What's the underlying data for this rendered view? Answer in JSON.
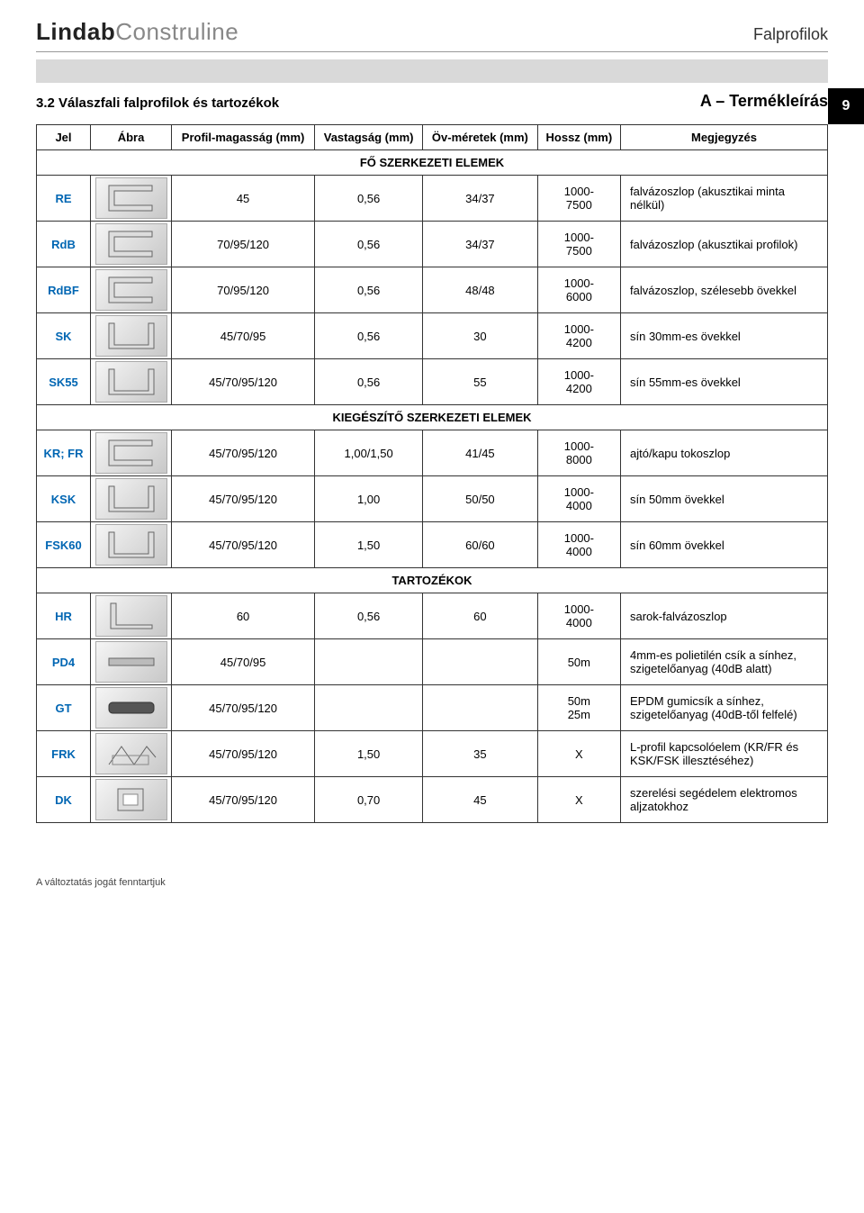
{
  "brand": {
    "bold": "Lindab",
    "light": "Construline"
  },
  "header_right": "Falprofilok",
  "section": {
    "number_title": "3.2   Válaszfali falprofilok és tartozékok",
    "desc": "A – Termékleírás",
    "page_num": "9"
  },
  "table": {
    "columns": [
      "Jel",
      "Ábra",
      "Profil-magasság (mm)",
      "Vastagság (mm)",
      "Öv-méretek (mm)",
      "Hossz (mm)",
      "Megjegyzés"
    ],
    "section_headers": {
      "main": "FŐ SZERKEZETI ELEMEK",
      "aux": "KIEGÉSZÍTŐ SZERKEZETI ELEMEK",
      "acc": "TARTOZÉKOK"
    },
    "rows_main": [
      {
        "jel": "RE",
        "pm": "45",
        "vt": "0,56",
        "ov": "34/37",
        "hz": "1000-7500",
        "note": "falvázoszlop (akusztikai minta nélkül)"
      },
      {
        "jel": "RdB",
        "pm": "70/95/120",
        "vt": "0,56",
        "ov": "34/37",
        "hz": "1000-7500",
        "note": "falvázoszlop (akusztikai profilok)"
      },
      {
        "jel": "RdBF",
        "pm": "70/95/120",
        "vt": "0,56",
        "ov": "48/48",
        "hz": "1000-6000",
        "note": "falvázoszlop, szélesebb övekkel"
      },
      {
        "jel": "SK",
        "pm": "45/70/95",
        "vt": "0,56",
        "ov": "30",
        "hz": "1000-4200",
        "note": "sín 30mm-es övekkel"
      },
      {
        "jel": "SK55",
        "pm": "45/70/95/120",
        "vt": "0,56",
        "ov": "55",
        "hz": "1000-4200",
        "note": "sín 55mm-es övekkel"
      }
    ],
    "rows_aux": [
      {
        "jel": "KR; FR",
        "pm": "45/70/95/120",
        "vt": "1,00/1,50",
        "ov": "41/45",
        "hz": "1000-8000",
        "note": "ajtó/kapu tokoszlop"
      },
      {
        "jel": "KSK",
        "pm": "45/70/95/120",
        "vt": "1,00",
        "ov": "50/50",
        "hz": "1000-4000",
        "note": "sín 50mm övekkel"
      },
      {
        "jel": "FSK60",
        "pm": "45/70/95/120",
        "vt": "1,50",
        "ov": "60/60",
        "hz": "1000-4000",
        "note": "sín 60mm övekkel"
      }
    ],
    "rows_acc": [
      {
        "jel": "HR",
        "pm": "60",
        "vt": "0,56",
        "ov": "60",
        "hz": "1000-4000",
        "note": "sarok-falvázoszlop"
      },
      {
        "jel": "PD4",
        "pm": "45/70/95",
        "vt": "",
        "ov": "",
        "hz": "50m",
        "note": "4mm-es polietilén csík a sínhez, szigetelőanyag (40dB alatt)"
      },
      {
        "jel": "GT",
        "pm": "45/70/95/120",
        "vt": "",
        "ov": "",
        "hz": "50m 25m",
        "note": "EPDM gumicsík a sínhez, szigetelőanyag (40dB-től felfelé)"
      },
      {
        "jel": "FRK",
        "pm": "45/70/95/120",
        "vt": "1,50",
        "ov": "35",
        "hz": "X",
        "note": "L-profil kapcsolóelem (KR/FR és KSK/FSK illesztéséhez)"
      },
      {
        "jel": "DK",
        "pm": "45/70/95/120",
        "vt": "0,70",
        "ov": "45",
        "hz": "X",
        "note": "szerelési segédelem elektromos aljzatokhoz"
      }
    ]
  },
  "footer": "A változtatás jogát fenntartjuk",
  "colors": {
    "accent_blue": "#0066b3",
    "border": "#333333",
    "gray_bar": "#d9d9d9",
    "black": "#000000",
    "white": "#ffffff"
  },
  "typography": {
    "brand_fontsize": 26,
    "body_fontsize": 13
  }
}
